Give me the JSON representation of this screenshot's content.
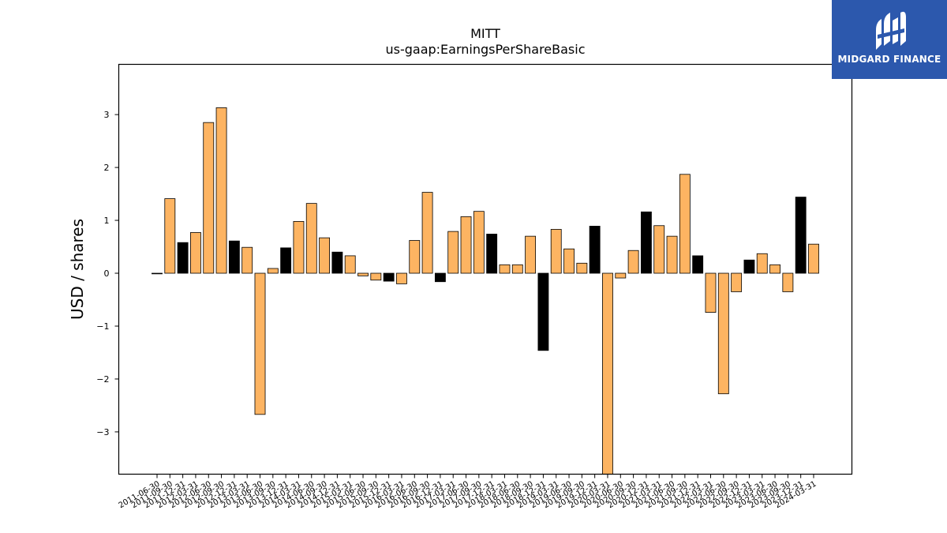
{
  "logo": {
    "text": "MIDGARD FINANCE",
    "color": "#2c58ad",
    "icon": "midgard-logo-mark-icon"
  },
  "chart_data": {
    "type": "bar",
    "title": "MITT",
    "subtitle": "us-gaap:EarningsPerShareBasic",
    "xlabel": "",
    "ylabel": "USD / shares",
    "ylim": [
      -3.8,
      3.95
    ],
    "yticks": [
      -3,
      -2,
      -1,
      0,
      1,
      2,
      3
    ],
    "ytick_labels": [
      "−3",
      "−2",
      "−1",
      "0",
      "1",
      "2",
      "3"
    ],
    "grid": false,
    "colors": {
      "default": "#fdb462",
      "highlight": "#000000",
      "edge": "#000000"
    },
    "categories": [
      "2011-06-30",
      "2011-09-30",
      "2011-12-31",
      "2012-03-31",
      "2012-06-30",
      "2012-09-30",
      "2012-12-31",
      "2013-03-31",
      "2013-06-30",
      "2013-09-30",
      "2013-12-31",
      "2014-03-31",
      "2014-06-30",
      "2014-09-30",
      "2014-12-31",
      "2015-03-31",
      "2015-06-30",
      "2015-09-30",
      "2015-12-31",
      "2016-03-31",
      "2016-06-30",
      "2016-09-30",
      "2016-12-31",
      "2017-03-31",
      "2017-06-30",
      "2017-09-30",
      "2017-12-31",
      "2018-03-31",
      "2018-06-30",
      "2018-09-30",
      "2018-12-31",
      "2019-03-31",
      "2019-06-30",
      "2019-09-30",
      "2019-12-31",
      "2020-03-31",
      "2020-06-30",
      "2020-09-30",
      "2020-12-31",
      "2021-03-31",
      "2021-06-30",
      "2021-09-30",
      "2021-12-31",
      "2022-03-31",
      "2022-06-30",
      "2022-09-30",
      "2022-12-31",
      "2023-03-31",
      "2023-06-30",
      "2023-09-30",
      "2023-12-31",
      "2024-03-31"
    ],
    "values": [
      -0.01,
      1.41,
      0.58,
      0.77,
      2.85,
      3.13,
      0.61,
      0.49,
      -2.67,
      0.09,
      0.48,
      0.98,
      1.32,
      0.67,
      0.4,
      0.33,
      -0.05,
      -0.13,
      -0.15,
      -0.2,
      0.62,
      1.53,
      -0.16,
      0.79,
      1.07,
      1.17,
      0.74,
      0.16,
      0.16,
      0.7,
      -1.46,
      0.83,
      0.46,
      0.19,
      0.89,
      -3.9,
      -0.09,
      0.43,
      1.16,
      0.9,
      0.7,
      1.87,
      0.33,
      -0.74,
      -2.28,
      -0.35,
      0.25,
      0.37,
      0.16,
      -0.35,
      1.44,
      0.55
    ],
    "highlight": [
      false,
      false,
      true,
      false,
      false,
      false,
      true,
      false,
      false,
      false,
      true,
      false,
      false,
      false,
      true,
      false,
      false,
      false,
      true,
      false,
      false,
      false,
      true,
      false,
      false,
      false,
      true,
      false,
      false,
      false,
      true,
      false,
      false,
      false,
      true,
      false,
      false,
      false,
      true,
      false,
      false,
      false,
      true,
      false,
      false,
      false,
      true,
      false,
      false,
      false,
      true,
      false
    ]
  }
}
